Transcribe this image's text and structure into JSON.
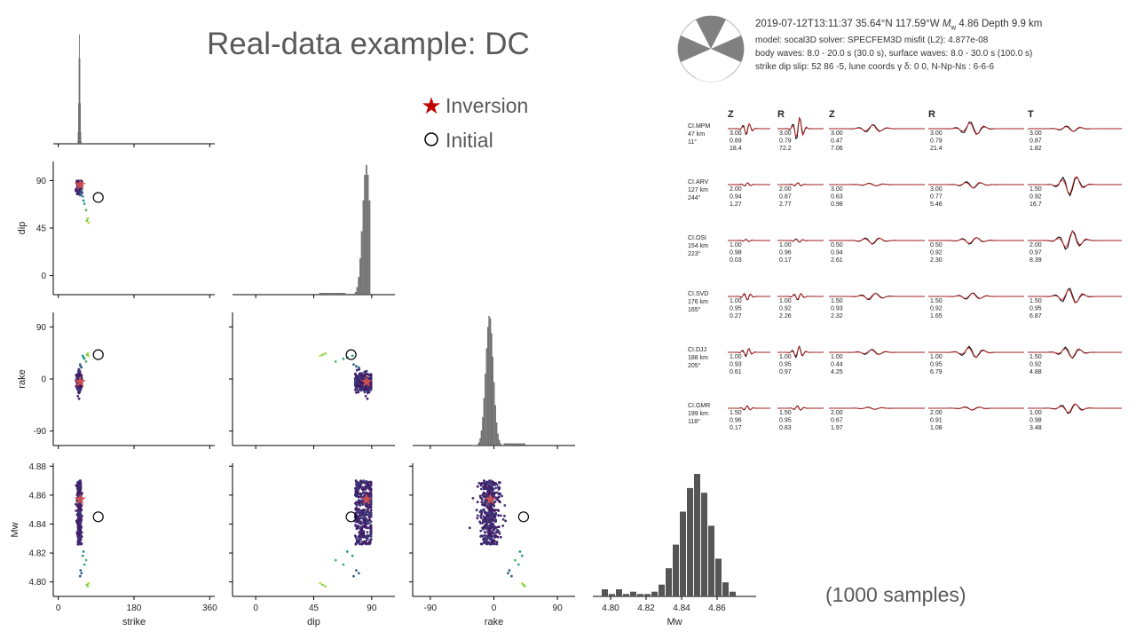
{
  "title": "Real-data example: DC",
  "samples_note": "(1000 samples)",
  "legend": {
    "inversion": {
      "label": "Inversion",
      "color": "#c00000"
    },
    "initial": {
      "label": "Initial"
    }
  },
  "colors": {
    "accent_red": "#d9534f",
    "hist_gray": "#555555",
    "marg_gray": "#9e9e9e"
  },
  "chart_data": [
    {
      "type": "scatter",
      "name": "corner-plot",
      "parameters": [
        {
          "key": "strike",
          "xlabel": "strike",
          "ylabel": "",
          "ylim": [
            0,
            360
          ],
          "xticks": [
            0,
            180,
            360
          ]
        },
        {
          "key": "dip",
          "xlabel": "dip",
          "ylabel": "dip",
          "lim": [
            -18,
            108
          ],
          "xticks": [
            0,
            45,
            90
          ],
          "yticks": [
            90,
            45,
            0
          ]
        },
        {
          "key": "rake",
          "xlabel": "rake",
          "ylabel": "rake",
          "lim": [
            -115,
            115
          ],
          "xticks": [
            -90,
            0,
            90
          ],
          "yticks": [
            90,
            0,
            -90
          ]
        },
        {
          "key": "Mw",
          "xlabel": "Mw",
          "ylabel": "Mw",
          "lim": [
            4.79,
            4.882
          ],
          "xticks": [
            "4.80",
            "4.82",
            "4.84",
            "4.86"
          ],
          "yticks": [
            "4.88",
            "4.86",
            "4.84",
            "4.82",
            "4.80"
          ]
        }
      ],
      "inversion": {
        "strike": 52,
        "dip": 86,
        "rake": -5,
        "Mw": 4.857
      },
      "initial": {
        "strike": 95,
        "dip": 74,
        "rake": 42,
        "Mw": 4.845
      },
      "mw_histogram": {
        "bins": [
          4.797,
          4.801,
          4.805,
          4.809,
          4.813,
          4.817,
          4.821,
          4.825,
          4.829,
          4.833,
          4.837,
          4.841,
          4.845,
          4.849,
          4.853,
          4.857,
          4.861,
          4.865,
          4.869
        ],
        "counts": [
          3,
          1,
          3,
          1,
          2,
          1,
          1,
          2,
          5,
          12,
          22,
          36,
          46,
          52,
          44,
          30,
          16,
          6,
          2
        ]
      }
    },
    {
      "type": "line",
      "name": "waveform-fits",
      "header": {
        "line1_left": "2019-07-12T13:11:37  35.64°N 117.59°W",
        "mw_symbol": "M",
        "mw_sub": "w",
        "line1_right": "4.86  Depth 9.9 km",
        "line2": "model: socal3D   solver: SPECFEM3D   misfit (L2): 4.877e-08",
        "line3": "body waves:  8.0 - 20.0 s (30.0 s),  surface waves: 8.0 - 30.0 s (100.0 s)",
        "line4": "strike  dip  slip:  52  86  -5,   lune coords γ  δ:  0  0,   N-Np-Ns : 6-6-6"
      },
      "component_headers": [
        "Z",
        "R",
        "Z",
        "R",
        "T"
      ],
      "stations": [
        {
          "name": "CI.MPM",
          "dist": "47 km",
          "az": "11°",
          "cols": [
            [
              "3.00",
              "0.89",
              "18.4"
            ],
            [
              "3.00",
              "0.79",
              "72.2"
            ],
            [
              "3.00",
              "0.47",
              "7.06"
            ],
            [
              "3.00",
              "0.79",
              "21.4"
            ],
            [
              "3.00",
              "0.87",
              "1.82"
            ]
          ],
          "amps": [
            0.5,
            1.0,
            0.35,
            0.6,
            0.25
          ]
        },
        {
          "name": "CI.ARV",
          "dist": "127 km",
          "az": "244°",
          "cols": [
            [
              "2.00",
              "0.94",
              "1.27"
            ],
            [
              "2.00",
              "0.87",
              "2.77"
            ],
            [
              "3.00",
              "0.63",
              "0.98"
            ],
            [
              "3.00",
              "0.77",
              "5.46"
            ],
            [
              "1.50",
              "0.92",
              "16.7"
            ]
          ],
          "amps": [
            0.15,
            0.15,
            0.12,
            0.3,
            0.9
          ]
        },
        {
          "name": "CI.OSI",
          "dist": "154 km",
          "az": "223°",
          "cols": [
            [
              "1.00",
              "0.98",
              "0.03"
            ],
            [
              "1.00",
              "0.96",
              "0.17"
            ],
            [
              "0.50",
              "0.94",
              "2.61"
            ],
            [
              "0.50",
              "0.92",
              "2.30"
            ],
            [
              "2.00",
              "0.97",
              "8.39"
            ]
          ],
          "amps": [
            0.1,
            0.15,
            0.3,
            0.3,
            0.85
          ]
        },
        {
          "name": "CI.SVD",
          "dist": "176 km",
          "az": "165°",
          "cols": [
            [
              "1.00",
              "0.95",
              "0.27"
            ],
            [
              "1.00",
              "0.92",
              "2.26"
            ],
            [
              "1.50",
              "0.93",
              "2.32"
            ],
            [
              "1.50",
              "0.92",
              "1.65"
            ],
            [
              "1.50",
              "0.95",
              "6.87"
            ]
          ],
          "amps": [
            0.3,
            0.3,
            0.3,
            0.3,
            0.7
          ]
        },
        {
          "name": "CI.DJJ",
          "dist": "188 km",
          "az": "205°",
          "cols": [
            [
              "1.00",
              "0.93",
              "0.61"
            ],
            [
              "1.00",
              "0.95",
              "0.97"
            ],
            [
              "1.00",
              "0.44",
              "4.25"
            ],
            [
              "1.00",
              "0.95",
              "6.79"
            ],
            [
              "1.50",
              "0.92",
              "4.88"
            ]
          ],
          "amps": [
            0.35,
            0.5,
            0.25,
            0.5,
            0.5
          ]
        },
        {
          "name": "CI.GMR",
          "dist": "199 km",
          "az": "118°",
          "cols": [
            [
              "1.50",
              "0.96",
              "0.17"
            ],
            [
              "1.50",
              "0.95",
              "0.83"
            ],
            [
              "2.00",
              "0.67",
              "1.97"
            ],
            [
              "2.00",
              "0.91",
              "1.08"
            ],
            [
              "1.00",
              "0.98",
              "3.48"
            ]
          ],
          "amps": [
            0.2,
            0.2,
            0.1,
            0.15,
            0.45
          ]
        }
      ]
    }
  ]
}
